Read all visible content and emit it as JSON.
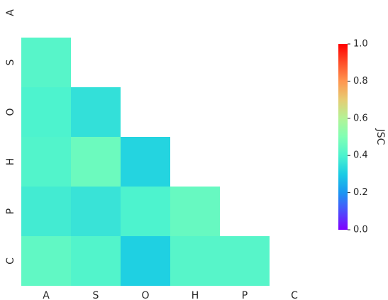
{
  "chart_data": {
    "type": "heatmap",
    "title": "",
    "x_categories": [
      "A",
      "S",
      "O",
      "H",
      "P",
      "C"
    ],
    "y_categories": [
      "A",
      "S",
      "O",
      "H",
      "P",
      "C"
    ],
    "mask": "lower-triangle (cells where column index < row index are shown)",
    "values": [
      [
        null,
        null,
        null,
        null,
        null,
        null
      ],
      [
        0.42,
        null,
        null,
        null,
        null,
        null
      ],
      [
        0.4,
        0.35,
        null,
        null,
        null,
        null
      ],
      [
        0.41,
        0.46,
        0.32,
        null,
        null,
        null
      ],
      [
        0.38,
        0.36,
        0.4,
        0.45,
        null,
        null
      ],
      [
        0.44,
        0.41,
        0.31,
        0.42,
        0.42,
        null
      ]
    ],
    "colormap": "rainbow",
    "vmin": 0.0,
    "vmax": 1.0,
    "colorbar": {
      "label": "JSC",
      "ticks": [
        "0.0",
        "0.2",
        "0.4",
        "0.6",
        "0.8",
        "1.0"
      ],
      "placement": "right"
    }
  }
}
